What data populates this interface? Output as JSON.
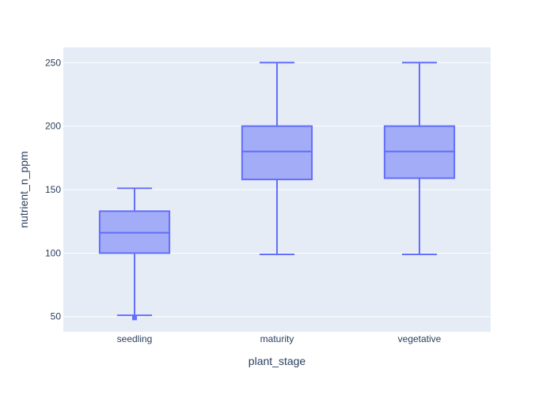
{
  "chart_data": {
    "type": "box",
    "title": "",
    "xlabel": "plant_stage",
    "ylabel": "nutrient_n_ppm",
    "ylim": [
      38,
      262
    ],
    "yticks": [
      50,
      100,
      150,
      200,
      250
    ],
    "grid": true,
    "categories": [
      "seedling",
      "maturity",
      "vegetative"
    ],
    "boxes": [
      {
        "category": "seedling",
        "lower_whisker": 51,
        "q1": 100,
        "median": 116,
        "q3": 133,
        "upper_whisker": 151,
        "outliers": [
          49
        ]
      },
      {
        "category": "maturity",
        "lower_whisker": 99,
        "q1": 158,
        "median": 180,
        "q3": 200,
        "upper_whisker": 250,
        "outliers": []
      },
      {
        "category": "vegetative",
        "lower_whisker": 99,
        "q1": 159,
        "median": 180,
        "q3": 200,
        "upper_whisker": 250,
        "outliers": []
      }
    ],
    "colors": {
      "box_fill": "#a3acf7",
      "box_line": "#636efa",
      "plot_bg": "#e5ecf6",
      "grid": "#ffffff",
      "text": "#2a3f5f"
    }
  }
}
